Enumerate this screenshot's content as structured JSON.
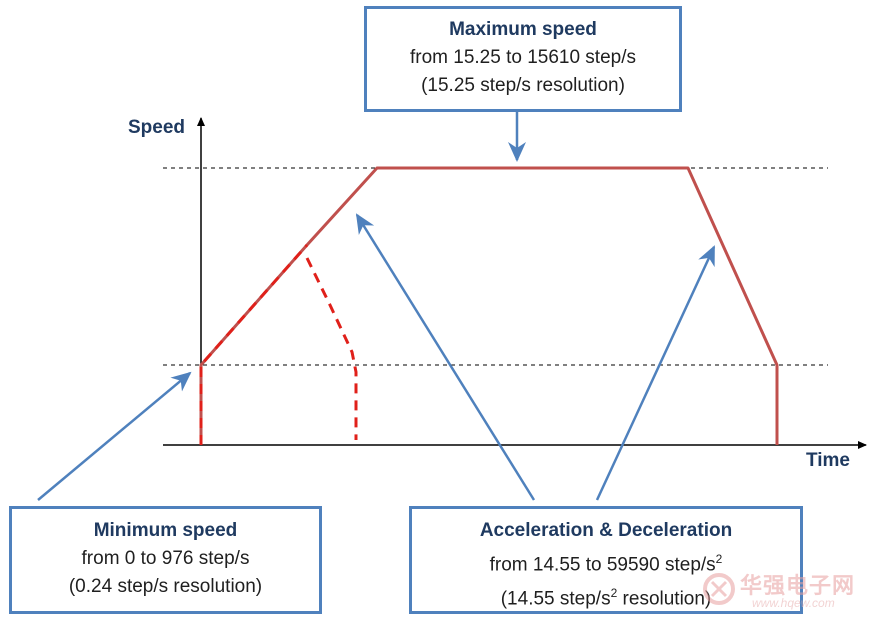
{
  "axes": {
    "y_label": "Speed",
    "x_label": "Time"
  },
  "boxes": {
    "max_speed": {
      "title": "Maximum speed",
      "line1": "from 15.25 to 15610 step/s",
      "line2": "(15.25 step/s resolution)"
    },
    "min_speed": {
      "title": "Minimum speed",
      "line1": "from 0 to 976 step/s",
      "line2": "(0.24 step/s resolution)"
    },
    "accel_decel": {
      "title": "Acceleration & Deceleration",
      "line1_prefix": "from 14.55 to 59590 step/s",
      "line1_sup": "2",
      "line2_prefix": "(14.55 step/s",
      "line2_sup": "2",
      "line2_suffix": " resolution)"
    }
  },
  "watermark": {
    "cn": "华强电子网",
    "url": "www.hqew.com"
  },
  "colors": {
    "profile": "#c0504d",
    "dashed_profile": "#e0201a",
    "arrow": "#4f81bd",
    "axis": "#000000"
  }
}
